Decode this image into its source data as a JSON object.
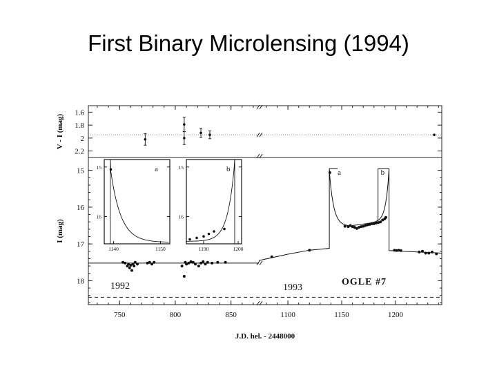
{
  "title": "First Binary Microlensing (1994)",
  "chart_data": {
    "type": "scatter",
    "xlabel": "J.D. hel. - 2448000",
    "xlim_segment_1": [
      722,
      875
    ],
    "xlim_segment_2": [
      1073,
      1243
    ],
    "x_ticks_segment_1": [
      "750",
      "800",
      "850"
    ],
    "x_ticks_segment_2": [
      "1100",
      "1150",
      "1200"
    ],
    "top_panel": {
      "ylabel": "V - I (mag)",
      "ylim": [
        1.5,
        2.3
      ],
      "y_ticks": [
        "1.6",
        "1.8",
        "2",
        "2.2"
      ],
      "baseline": 1.95,
      "points": [
        {
          "x": 773,
          "y": 2.02,
          "err": 0.09
        },
        {
          "x": 808,
          "y": 2.0,
          "err": 0.1
        },
        {
          "x": 808,
          "y": 1.79,
          "err": 0.11
        },
        {
          "x": 823,
          "y": 1.92,
          "err": 0.07
        },
        {
          "x": 831,
          "y": 1.95,
          "err": 0.06
        },
        {
          "x": 1236,
          "y": 1.95,
          "err": 0
        }
      ]
    },
    "bottom_panel": {
      "ylabel": "I (mag)",
      "ylim": [
        18.65,
        14.65
      ],
      "y_ticks": [
        "15",
        "16",
        "17",
        "18"
      ],
      "baseline": 17.52,
      "dashed_level": 18.45,
      "season_labels": [
        "1992",
        "1993"
      ],
      "event_label": "OGLE #7",
      "caustic_labels": [
        "a",
        "b"
      ],
      "points_segment_1": [
        [
          753,
          17.5
        ],
        [
          755,
          17.52
        ],
        [
          757,
          17.6
        ],
        [
          758,
          17.55
        ],
        [
          759,
          17.65
        ],
        [
          760,
          17.58
        ],
        [
          761,
          17.72
        ],
        [
          762,
          17.55
        ],
        [
          763,
          17.6
        ],
        [
          764,
          17.5
        ],
        [
          766,
          17.55
        ],
        [
          775,
          17.52
        ],
        [
          777,
          17.5
        ],
        [
          779,
          17.55
        ],
        [
          781,
          17.5
        ],
        [
          806,
          17.6
        ],
        [
          808,
          17.88
        ],
        [
          809,
          17.5
        ],
        [
          810,
          17.55
        ],
        [
          812,
          17.52
        ],
        [
          814,
          17.48
        ],
        [
          816,
          17.5
        ],
        [
          818,
          17.55
        ],
        [
          821,
          17.6
        ],
        [
          823,
          17.52
        ],
        [
          825,
          17.48
        ],
        [
          827,
          17.55
        ],
        [
          829,
          17.5
        ],
        [
          833,
          17.52
        ],
        [
          838,
          17.5
        ],
        [
          845,
          17.5
        ]
      ],
      "points_segment_2": [
        [
          1085,
          17.35
        ],
        [
          1120,
          17.17
        ],
        [
          1139,
          15.06
        ],
        [
          1153,
          16.52
        ],
        [
          1156,
          16.53
        ],
        [
          1158,
          16.5
        ],
        [
          1160,
          16.53
        ],
        [
          1162,
          16.55
        ],
        [
          1164,
          16.58
        ],
        [
          1166,
          16.55
        ],
        [
          1168,
          16.53
        ],
        [
          1170,
          16.52
        ],
        [
          1172,
          16.5
        ],
        [
          1174,
          16.48
        ],
        [
          1176,
          16.47
        ],
        [
          1178,
          16.45
        ],
        [
          1180,
          16.45
        ],
        [
          1182,
          16.43
        ],
        [
          1184,
          16.42
        ],
        [
          1186,
          16.4
        ],
        [
          1188,
          16.35
        ],
        [
          1190,
          16.32
        ],
        [
          1191,
          16.28
        ],
        [
          1199,
          17.17
        ],
        [
          1201,
          17.18
        ],
        [
          1203,
          17.17
        ],
        [
          1205,
          17.18
        ],
        [
          1222,
          17.22
        ],
        [
          1225,
          17.2
        ],
        [
          1228,
          17.25
        ],
        [
          1231,
          17.25
        ],
        [
          1234,
          17.22
        ],
        [
          1238,
          17.27
        ]
      ],
      "model_caustic_a_x": 1138.5,
      "model_caustic_b_x": 1194
    },
    "inset_a": {
      "label": "a",
      "xlim": [
        1138,
        1152
      ],
      "x_ticks": [
        "1140",
        "1150"
      ],
      "ylim": [
        16.55,
        14.85
      ],
      "y_ticks": [
        "15",
        "16"
      ],
      "points": [
        [
          1139.4,
          15.05
        ]
      ]
    },
    "inset_b": {
      "label": "b",
      "xlim": [
        1185,
        1201
      ],
      "x_ticks": [
        "1190",
        "1200"
      ],
      "ylim": [
        16.55,
        14.85
      ],
      "y_ticks": [
        "15",
        "16"
      ],
      "points": [
        [
          1186,
          16.46
        ],
        [
          1188,
          16.43
        ],
        [
          1190,
          16.4
        ],
        [
          1191.5,
          16.35
        ],
        [
          1193,
          16.3
        ],
        [
          1196,
          16.25
        ]
      ]
    }
  }
}
